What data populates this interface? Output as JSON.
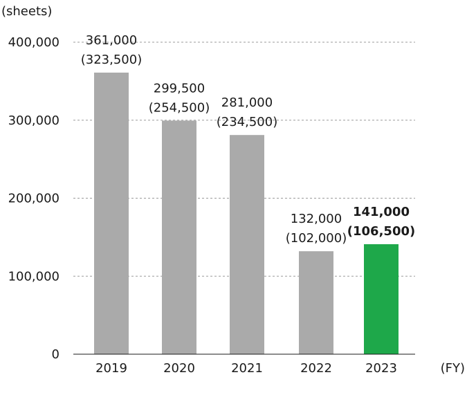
{
  "chart_data": {
    "type": "bar",
    "ylabel": "(sheets)",
    "xlabel": "(FY)",
    "ylim": [
      0,
      400000
    ],
    "yticks": [
      0,
      100000,
      200000,
      300000,
      400000
    ],
    "ytick_labels": [
      "0",
      "100,000",
      "200,000",
      "300,000",
      "400,000"
    ],
    "grid": true,
    "categories": [
      "2019",
      "2020",
      "2021",
      "2022",
      "2023"
    ],
    "values": [
      361000,
      299500,
      281000,
      132000,
      141000
    ],
    "secondary_values": [
      323500,
      254500,
      234500,
      102000,
      106500
    ],
    "value_labels": [
      "361,000",
      "299,500",
      "281,000",
      "132,000",
      "141,000"
    ],
    "secondary_labels": [
      "(323,500)",
      "(254,500)",
      "(234,500)",
      "(102,000)",
      "(106,500)"
    ],
    "highlight_index": 4,
    "colors": {
      "bar": "#aaaaaa",
      "highlight": "#1ea84a"
    }
  }
}
